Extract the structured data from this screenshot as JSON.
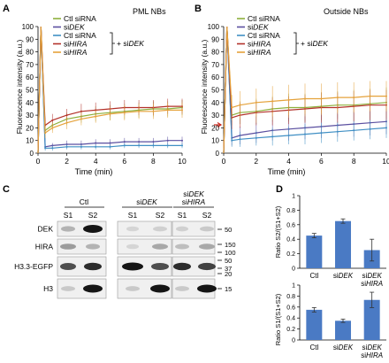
{
  "panel_labels": [
    "A",
    "B",
    "C",
    "D"
  ],
  "legend": {
    "entries": [
      {
        "text": "Ctl siRNA",
        "italic_prefix": "",
        "color": "#8db03c"
      },
      {
        "text": "DEK",
        "italic_prefix": "si",
        "color": "#5a4fa0"
      },
      {
        "text": "Ctl siRNA",
        "italic_prefix": "",
        "color": "#3f8fc4"
      },
      {
        "text": "HIRA",
        "italic_prefix": "si",
        "color": "#b3312a"
      },
      {
        "text": "HIRA",
        "italic_prefix": "si",
        "color": "#e5a23b"
      }
    ],
    "bracket_prefix": "+ si",
    "bracket_italic": "DEK"
  },
  "blots": {
    "groups": [
      {
        "label": "Ctl",
        "label2": ""
      },
      {
        "label": "siDEK",
        "label2": ""
      },
      {
        "label": "siDEK",
        "label2": "siHIRA"
      }
    ],
    "fractions": [
      "S1",
      "S2",
      "S1",
      "S2",
      "S1",
      "S2"
    ],
    "rows": [
      {
        "name": "DEK",
        "markers": [
          "50"
        ]
      },
      {
        "name": "HIRA",
        "markers": [
          "150",
          "100"
        ]
      },
      {
        "name": "H3.3-EGFP",
        "markers": [
          "50",
          "37",
          "20"
        ]
      },
      {
        "name": "H3",
        "markers": [
          "15"
        ]
      }
    ]
  },
  "chart_data": [
    {
      "type": "line",
      "title": "PML NBs",
      "xlabel": "Time (min)",
      "ylabel": "Fluorescence intensity (a.u.)",
      "xlim": [
        0,
        10
      ],
      "ylim": [
        0,
        100
      ],
      "xticks": [
        "0",
        "2",
        "4",
        "6",
        "8",
        "10"
      ],
      "yticks": [
        "0",
        "10",
        "20",
        "30",
        "40",
        "50",
        "60",
        "70",
        "80",
        "90",
        "100"
      ],
      "x": [
        0,
        0.2,
        0.5,
        1,
        2,
        3,
        4,
        5,
        6,
        7,
        8,
        9,
        10
      ],
      "series": [
        {
          "name": "Ctl siRNA",
          "color": "#8db03c",
          "values": [
            0,
            100,
            18,
            22,
            27,
            29,
            31,
            32,
            33,
            34,
            35,
            35,
            36
          ],
          "err": [
            0,
            0,
            3,
            4,
            5,
            5,
            6,
            6,
            6,
            6,
            6,
            6,
            6
          ]
        },
        {
          "name": "siDEK",
          "color": "#5a4fa0",
          "values": [
            0,
            100,
            5,
            6,
            7,
            7,
            8,
            8,
            9,
            9,
            9,
            10,
            10
          ],
          "err": [
            0,
            0,
            2,
            2,
            3,
            3,
            3,
            3,
            3,
            3,
            3,
            3,
            3
          ]
        },
        {
          "name": "Ctl siRNA + siDEK",
          "color": "#3f8fc4",
          "values": [
            0,
            100,
            4,
            4,
            5,
            5,
            5,
            5,
            6,
            6,
            6,
            6,
            6
          ],
          "err": [
            0,
            0,
            2,
            2,
            2,
            2,
            2,
            2,
            2,
            2,
            2,
            2,
            2
          ]
        },
        {
          "name": "siHIRA + siDEK",
          "color": "#b3312a",
          "values": [
            0,
            100,
            22,
            26,
            30,
            33,
            34,
            35,
            36,
            36,
            36,
            37,
            37
          ],
          "err": [
            0,
            0,
            4,
            5,
            5,
            6,
            6,
            6,
            6,
            6,
            6,
            6,
            6
          ]
        },
        {
          "name": "siHIRA",
          "color": "#e5a23b",
          "values": [
            0,
            100,
            16,
            20,
            24,
            27,
            29,
            31,
            32,
            33,
            33,
            34,
            34
          ],
          "err": [
            0,
            0,
            4,
            4,
            5,
            5,
            5,
            5,
            6,
            6,
            6,
            6,
            6
          ]
        }
      ]
    },
    {
      "type": "line",
      "title": "Outside NBs",
      "xlabel": "Time (min)",
      "ylabel": "Fluorescence intensity (a.u.)",
      "xlim": [
        0,
        10
      ],
      "ylim": [
        0,
        100
      ],
      "xticks": [
        "0",
        "2",
        "4",
        "6",
        "8",
        "10"
      ],
      "yticks": [
        "0",
        "10",
        "20",
        "30",
        "40",
        "50",
        "60",
        "70",
        "80",
        "90",
        "100"
      ],
      "x": [
        0,
        0.2,
        0.5,
        1,
        2,
        3,
        4,
        5,
        6,
        7,
        8,
        9,
        10
      ],
      "series": [
        {
          "name": "Ctl siRNA",
          "color": "#8db03c",
          "values": [
            0,
            100,
            30,
            32,
            33,
            35,
            36,
            36,
            37,
            38,
            38,
            39,
            40
          ],
          "err": [
            0,
            0,
            8,
            9,
            10,
            10,
            11,
            11,
            11,
            11,
            12,
            12,
            12
          ]
        },
        {
          "name": "siDEK",
          "color": "#5a4fa0",
          "values": [
            0,
            100,
            12,
            14,
            16,
            18,
            19,
            20,
            21,
            22,
            23,
            24,
            25
          ],
          "err": [
            0,
            0,
            6,
            7,
            8,
            8,
            9,
            9,
            9,
            9,
            10,
            10,
            10
          ]
        },
        {
          "name": "Ctl siRNA + siDEK",
          "color": "#3f8fc4",
          "values": [
            0,
            100,
            10,
            11,
            12,
            13,
            14,
            15,
            16,
            17,
            18,
            19,
            20
          ],
          "err": [
            0,
            0,
            5,
            6,
            6,
            7,
            7,
            8,
            8,
            8,
            8,
            8,
            8
          ]
        },
        {
          "name": "siHIRA + siDEK",
          "color": "#b3312a",
          "values": [
            0,
            100,
            28,
            30,
            32,
            33,
            34,
            35,
            36,
            36,
            37,
            38,
            38
          ],
          "err": [
            0,
            0,
            9,
            10,
            10,
            11,
            11,
            11,
            12,
            12,
            12,
            12,
            12
          ]
        },
        {
          "name": "siHIRA",
          "color": "#e5a23b",
          "values": [
            0,
            100,
            36,
            38,
            40,
            41,
            42,
            43,
            43,
            44,
            44,
            45,
            45
          ],
          "err": [
            0,
            0,
            10,
            11,
            11,
            12,
            12,
            12,
            12,
            12,
            12,
            12,
            12
          ]
        }
      ]
    },
    {
      "type": "bar",
      "ylabel": "Ratio S2/(S1+S2)",
      "categories": [
        "Ctl",
        "siDEK",
        "siDEK siHIRA"
      ],
      "values": [
        0.45,
        0.65,
        0.25
      ],
      "err": [
        0.03,
        0.03,
        0.15
      ],
      "ylim": [
        0,
        1
      ],
      "yticks": [
        "0",
        "0.2",
        "0.4",
        "0.6",
        "0.8",
        "1"
      ],
      "color": "#4a7ac4"
    },
    {
      "type": "bar",
      "ylabel": "Ratio S1/(S1+S2)",
      "categories": [
        "Ctl",
        "siDEK",
        "siDEK siHIRA"
      ],
      "values": [
        0.55,
        0.35,
        0.73
      ],
      "err": [
        0.04,
        0.03,
        0.14
      ],
      "ylim": [
        0,
        1
      ],
      "yticks": [
        "0",
        "0.2",
        "0.4",
        "0.6",
        "0.8",
        "1"
      ],
      "color": "#4a7ac4"
    }
  ]
}
